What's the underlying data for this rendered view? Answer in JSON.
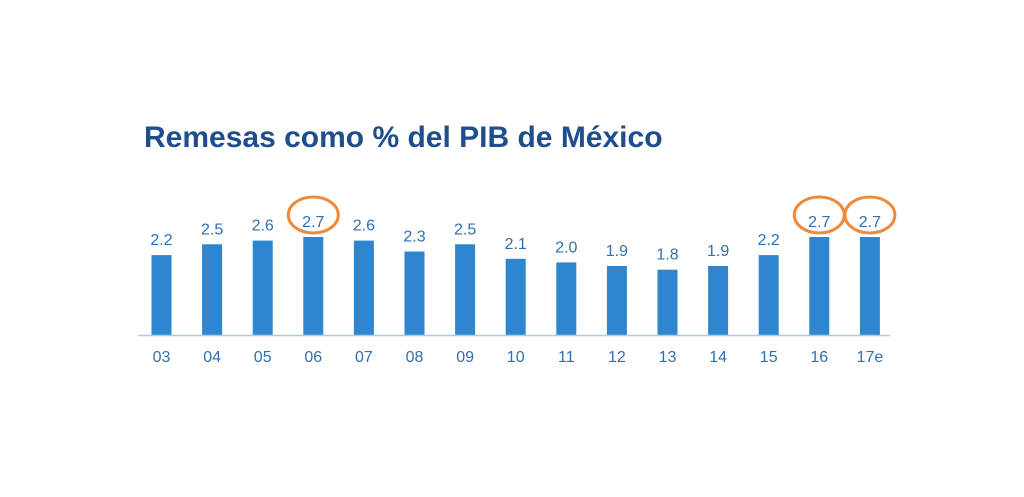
{
  "chart_data": {
    "type": "bar",
    "title": "Remesas como % del PIB de México",
    "categories": [
      "03",
      "04",
      "05",
      "06",
      "07",
      "08",
      "09",
      "10",
      "11",
      "12",
      "13",
      "14",
      "15",
      "16",
      "17e"
    ],
    "values": [
      2.2,
      2.5,
      2.6,
      2.7,
      2.6,
      2.3,
      2.5,
      2.1,
      2.0,
      1.9,
      1.8,
      1.9,
      2.2,
      2.7,
      2.7
    ],
    "value_labels": [
      "2.2",
      "2.5",
      "2.6",
      "2.7",
      "2.6",
      "2.3",
      "2.5",
      "2.1",
      "2.0",
      "1.9",
      "1.8",
      "1.9",
      "2.2",
      "2.7",
      "2.7"
    ],
    "highlighted": [
      "06",
      "16",
      "17e"
    ],
    "xlabel": "",
    "ylabel": "",
    "ylim": [
      0,
      2.7
    ],
    "grid": false,
    "legend": "none"
  },
  "colors": {
    "title": "#1f4e8c",
    "bar": "#2e86d0",
    "axis": "#aacbe6",
    "labels": "#2e6fb0",
    "highlight_circle": "#ee8a3a"
  }
}
